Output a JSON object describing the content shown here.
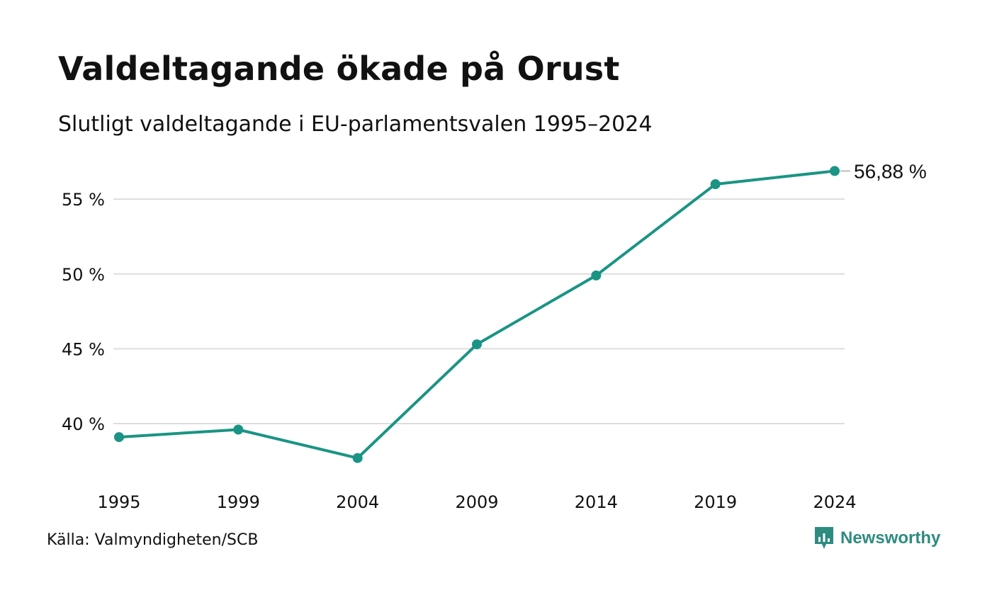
{
  "title": "Valdeltagande ökade på Orust",
  "subtitle": "Slutligt valdeltagande i EU-parlamentsvalen 1995–2024",
  "source": "Källa: Valmyndigheten/SCB",
  "brand": {
    "name": "Newsworthy",
    "icon": "newsworthy-logo-icon"
  },
  "colors": {
    "line": "#1a9484",
    "grid": "#dddddd",
    "text": "#111111",
    "brand": "#2e8b7f"
  },
  "chart_data": {
    "type": "line",
    "x": [
      "1995",
      "1999",
      "2004",
      "2009",
      "2014",
      "2019",
      "2024"
    ],
    "series": [
      {
        "values": [
          39.1,
          39.6,
          37.7,
          45.3,
          49.9,
          56.0,
          56.88
        ]
      }
    ],
    "yticks": [
      40,
      45,
      50,
      55
    ],
    "ytick_labels": [
      "40 %",
      "45 %",
      "50 %",
      "55 %"
    ],
    "ylim": [
      36.5,
      57.8
    ],
    "end_label": "56,88 %",
    "grid": true,
    "legend": "none"
  }
}
